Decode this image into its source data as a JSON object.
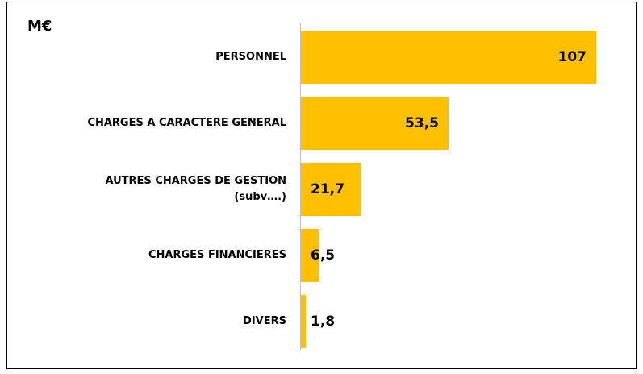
{
  "chart_data": {
    "type": "bar",
    "orientation": "horizontal",
    "title": "M€",
    "categories": [
      "PERSONNEL",
      "CHARGES A CARACTERE GENERAL",
      "AUTRES CHARGES DE GESTION\n(subv….)",
      "CHARGES FINANCIERES",
      "DIVERS"
    ],
    "values": [
      107,
      53.5,
      21.7,
      6.5,
      1.8
    ],
    "value_labels": [
      "107",
      "53,5",
      "21,7",
      "6,5",
      "1,8"
    ],
    "color": "#ffc000"
  }
}
